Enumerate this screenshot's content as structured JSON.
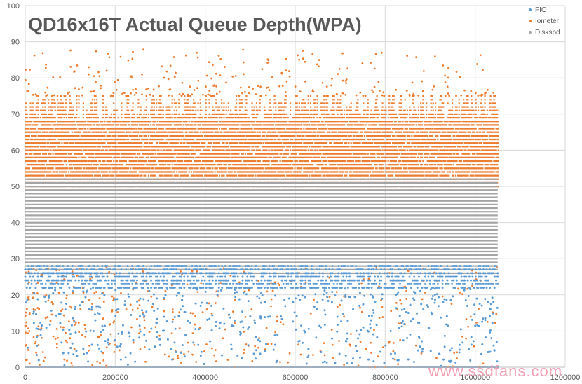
{
  "chart_data": {
    "type": "scatter",
    "title": "QD16x16T Actual Queue Depth(WPA)",
    "xlabel": "",
    "ylabel": "",
    "xlim": [
      0,
      1200000
    ],
    "ylim": [
      0,
      100
    ],
    "x_ticks": [
      "0",
      "200000",
      "400000",
      "600000",
      "800000",
      "1000000",
      "1200000"
    ],
    "y_ticks": [
      "0",
      "10",
      "20",
      "30",
      "40",
      "50",
      "60",
      "70",
      "80",
      "90",
      "100"
    ],
    "grid": true,
    "legend_position": "top-right",
    "series": [
      {
        "name": "FIO",
        "color": "#5b9bd5",
        "main_band": [
          22,
          28
        ],
        "sparse_range": [
          0,
          22
        ],
        "x_max": 1050000
      },
      {
        "name": "Iometer",
        "color": "#ed7d31",
        "main_band": [
          50,
          75
        ],
        "outlier_range": [
          75,
          88
        ],
        "low_outlier_range": [
          0,
          28
        ],
        "x_max": 1050000
      },
      {
        "name": "Diskspd",
        "color": "#a5a5a5",
        "main_band": [
          26,
          52
        ],
        "x_max": 1050000
      }
    ]
  },
  "watermark": "www.ssdfans.com"
}
